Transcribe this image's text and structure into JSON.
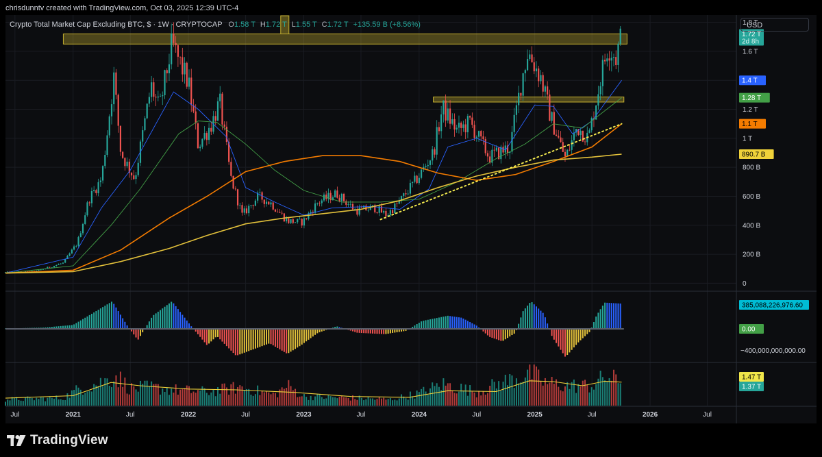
{
  "attribution": "chrisdunntv created with TradingView.com, Oct 03, 2025 12:39 UTC-4",
  "legend": {
    "symbol": "Crypto Total Market Cap Excluding BTC, $ · 1W · CRYPTOCAP",
    "o_label": "O",
    "o_value": "1.58 T",
    "h_label": "H",
    "h_value": "1.72 T",
    "l_label": "L",
    "l_value": "1.55 T",
    "c_label": "C",
    "c_value": "1.72 T",
    "change": "+135.59 B (+8.56%)"
  },
  "currency": "USD",
  "brand": {
    "name": "TradingView",
    "icon": "tradingview-logo-icon"
  },
  "colors": {
    "up": "#26a69a",
    "down": "#ef5350",
    "ma_blue": "#2962ff",
    "ma_green": "#43a047",
    "ma_orange": "#f57c00",
    "ma_yellow": "#e3c13b",
    "zone": "#c8b330",
    "hist_blue": "#2962ff",
    "hist_teal": "#26a69a",
    "hist_red": "#ef5350",
    "hist_yellow": "#e3c13b"
  },
  "chart_data": {
    "type": "candlestick",
    "interval": "1W",
    "x_range": [
      "2020-06-01",
      "2026-10-01"
    ],
    "y_range": [
      -50000000000,
      1850000000000
    ],
    "y_ticks": [
      "0",
      "200 B",
      "400 B",
      "600 B",
      "800 B",
      "1 T",
      "1.2 T",
      "1.4 T",
      "1.6 T",
      "1.8 T"
    ],
    "y_tick_values": [
      0,
      200,
      400,
      600,
      800,
      1000,
      1200,
      1400,
      1600,
      1800
    ],
    "x_ticks": [
      {
        "label": "Jul",
        "date": "2020-07-01",
        "year": false
      },
      {
        "label": "2021",
        "date": "2021-01-01",
        "year": true
      },
      {
        "label": "Jul",
        "date": "2021-07-01",
        "year": false
      },
      {
        "label": "2022",
        "date": "2022-01-01",
        "year": true
      },
      {
        "label": "Jul",
        "date": "2022-07-01",
        "year": false
      },
      {
        "label": "2023",
        "date": "2023-01-01",
        "year": true
      },
      {
        "label": "Jul",
        "date": "2023-07-01",
        "year": false
      },
      {
        "label": "2024",
        "date": "2024-01-01",
        "year": true
      },
      {
        "label": "Jul",
        "date": "2024-07-01",
        "year": false
      },
      {
        "label": "2025",
        "date": "2025-01-01",
        "year": true
      },
      {
        "label": "Jul",
        "date": "2025-07-01",
        "year": false
      },
      {
        "label": "2026",
        "date": "2026-01-01",
        "year": true
      },
      {
        "label": "Jul",
        "date": "2026-07-01",
        "year": false
      }
    ],
    "price_path": [
      [
        "2020-06-01",
        75
      ],
      [
        "2020-09-01",
        80
      ],
      [
        "2020-12-01",
        140
      ],
      [
        "2021-01-15",
        280
      ],
      [
        "2021-02-20",
        580
      ],
      [
        "2021-04-01",
        720
      ],
      [
        "2021-05-10",
        1420
      ],
      [
        "2021-06-01",
        900
      ],
      [
        "2021-07-15",
        720
      ],
      [
        "2021-09-05",
        1360
      ],
      [
        "2021-10-01",
        1200
      ],
      [
        "2021-11-10",
        1650
      ],
      [
        "2022-01-01",
        1380
      ],
      [
        "2022-02-01",
        950
      ],
      [
        "2022-03-15",
        1100
      ],
      [
        "2022-04-10",
        1250
      ],
      [
        "2022-05-15",
        730
      ],
      [
        "2022-06-20",
        470
      ],
      [
        "2022-08-10",
        600
      ],
      [
        "2022-09-20",
        550
      ],
      [
        "2022-11-10",
        430
      ],
      [
        "2022-12-28",
        420
      ],
      [
        "2023-02-15",
        560
      ],
      [
        "2023-04-15",
        620
      ],
      [
        "2023-06-15",
        500
      ],
      [
        "2023-08-15",
        520
      ],
      [
        "2023-09-20",
        470
      ],
      [
        "2023-10-30",
        560
      ],
      [
        "2024-01-01",
        740
      ],
      [
        "2024-02-15",
        900
      ],
      [
        "2024-03-15",
        1210
      ],
      [
        "2024-05-01",
        1050
      ],
      [
        "2024-06-10",
        1110
      ],
      [
        "2024-08-10",
        870
      ],
      [
        "2024-10-15",
        940
      ],
      [
        "2024-11-20",
        1400
      ],
      [
        "2024-12-10",
        1600
      ],
      [
        "2025-01-20",
        1420
      ],
      [
        "2025-02-20",
        1150
      ],
      [
        "2025-04-08",
        860
      ],
      [
        "2025-05-15",
        1080
      ],
      [
        "2025-06-20",
        1000
      ],
      [
        "2025-07-25",
        1380
      ],
      [
        "2025-08-20",
        1640
      ],
      [
        "2025-09-15",
        1560
      ],
      [
        "2025-10-03",
        1720
      ]
    ],
    "moving_averages": [
      {
        "color": "ma_blue",
        "last_value": "1.4 T",
        "path": [
          [
            "2020-06-01",
            70
          ],
          [
            "2021-01-01",
            180
          ],
          [
            "2021-04-01",
            520
          ],
          [
            "2021-07-01",
            780
          ],
          [
            "2021-11-15",
            1320
          ],
          [
            "2022-02-01",
            1200
          ],
          [
            "2022-05-01",
            1010
          ],
          [
            "2022-07-01",
            660
          ],
          [
            "2022-10-01",
            560
          ],
          [
            "2023-01-01",
            470
          ],
          [
            "2023-04-01",
            520
          ],
          [
            "2023-08-01",
            530
          ],
          [
            "2023-11-01",
            510
          ],
          [
            "2024-02-01",
            650
          ],
          [
            "2024-04-01",
            940
          ],
          [
            "2024-07-01",
            1000
          ],
          [
            "2024-10-01",
            920
          ],
          [
            "2025-01-01",
            1230
          ],
          [
            "2025-03-01",
            1220
          ],
          [
            "2025-05-01",
            1030
          ],
          [
            "2025-07-01",
            1120
          ],
          [
            "2025-10-03",
            1400
          ]
        ]
      },
      {
        "color": "ma_green",
        "last_value": "1.28 T",
        "path": [
          [
            "2020-06-01",
            70
          ],
          [
            "2021-01-01",
            120
          ],
          [
            "2021-05-01",
            400
          ],
          [
            "2021-08-01",
            650
          ],
          [
            "2021-12-01",
            1030
          ],
          [
            "2022-02-01",
            1120
          ],
          [
            "2022-04-01",
            1110
          ],
          [
            "2022-07-01",
            960
          ],
          [
            "2022-10-01",
            780
          ],
          [
            "2023-01-01",
            640
          ],
          [
            "2023-05-01",
            560
          ],
          [
            "2023-09-01",
            560
          ],
          [
            "2024-01-01",
            580
          ],
          [
            "2024-05-01",
            700
          ],
          [
            "2024-09-01",
            860
          ],
          [
            "2024-12-01",
            960
          ],
          [
            "2025-03-01",
            1100
          ],
          [
            "2025-06-01",
            1070
          ],
          [
            "2025-10-03",
            1280
          ]
        ]
      },
      {
        "color": "ma_orange",
        "last_value": "1.1 T",
        "path": [
          [
            "2020-06-01",
            70
          ],
          [
            "2021-01-01",
            90
          ],
          [
            "2021-06-01",
            230
          ],
          [
            "2021-11-01",
            450
          ],
          [
            "2022-03-01",
            600
          ],
          [
            "2022-07-01",
            770
          ],
          [
            "2022-11-01",
            840
          ],
          [
            "2023-03-01",
            880
          ],
          [
            "2023-07-01",
            880
          ],
          [
            "2023-11-01",
            840
          ],
          [
            "2024-03-01",
            760
          ],
          [
            "2024-07-01",
            710
          ],
          [
            "2024-11-01",
            750
          ],
          [
            "2025-03-01",
            840
          ],
          [
            "2025-07-01",
            940
          ],
          [
            "2025-10-03",
            1100
          ]
        ]
      },
      {
        "color": "ma_yellow",
        "last_value": "890.7 B",
        "path": [
          [
            "2020-06-01",
            70
          ],
          [
            "2021-01-01",
            80
          ],
          [
            "2021-06-01",
            150
          ],
          [
            "2021-11-01",
            240
          ],
          [
            "2022-03-01",
            330
          ],
          [
            "2022-07-01",
            410
          ],
          [
            "2022-11-01",
            450
          ],
          [
            "2023-03-01",
            480
          ],
          [
            "2023-07-01",
            510
          ],
          [
            "2023-11-01",
            570
          ],
          [
            "2024-03-01",
            660
          ],
          [
            "2024-07-01",
            740
          ],
          [
            "2024-11-01",
            800
          ],
          [
            "2025-03-01",
            850
          ],
          [
            "2025-07-01",
            870
          ],
          [
            "2025-10-03",
            890.7
          ]
        ]
      }
    ],
    "last_price": "1.72 T",
    "last_price_countdown": "2d 8h",
    "price_axis_labels": [
      "1.72 T",
      "2d 8h",
      "1.4 T",
      "1.28 T",
      "1.1 T",
      "890.7 B"
    ],
    "zones": [
      {
        "from": "2020-12-01",
        "to": "2025-10-20",
        "low": 1650,
        "high": 1720
      },
      {
        "from": "2024-02-15",
        "to": "2025-10-10",
        "low": 1250,
        "high": 1285
      }
    ],
    "vertical_marker": {
      "from": "2022-10-20",
      "to": "2022-11-15",
      "low": 1720,
      "high": 1850
    },
    "trendline_dotted": [
      [
        "2023-09-01",
        440
      ],
      [
        "2025-10-03",
        1100
      ]
    ],
    "oscillator": {
      "value_label": "385,088,226,976.60",
      "zero_label": "0.00",
      "tick_label": "−400,000,000,000.00",
      "range": [
        -480,
        480
      ],
      "path": [
        [
          "2020-06-01",
          5
        ],
        [
          "2020-10-01",
          20
        ],
        [
          "2021-01-01",
          60
        ],
        [
          "2021-03-01",
          230
        ],
        [
          "2021-05-05",
          420
        ],
        [
          "2021-06-20",
          60
        ],
        [
          "2021-07-25",
          -170
        ],
        [
          "2021-09-10",
          200
        ],
        [
          "2021-11-10",
          420
        ],
        [
          "2022-01-10",
          40
        ],
        [
          "2022-03-01",
          -250
        ],
        [
          "2022-04-01",
          -110
        ],
        [
          "2022-06-01",
          -410
        ],
        [
          "2022-07-15",
          -330
        ],
        [
          "2022-09-15",
          -220
        ],
        [
          "2022-11-10",
          -380
        ],
        [
          "2022-12-20",
          -260
        ],
        [
          "2023-02-15",
          -60
        ],
        [
          "2023-04-15",
          40
        ],
        [
          "2023-06-20",
          -60
        ],
        [
          "2023-09-15",
          -80
        ],
        [
          "2023-11-20",
          -30
        ],
        [
          "2024-01-10",
          120
        ],
        [
          "2024-04-01",
          200
        ],
        [
          "2024-05-15",
          170
        ],
        [
          "2024-07-01",
          50
        ],
        [
          "2024-08-10",
          -120
        ],
        [
          "2024-09-20",
          -190
        ],
        [
          "2024-11-01",
          -60
        ],
        [
          "2024-11-25",
          270
        ],
        [
          "2024-12-20",
          420
        ],
        [
          "2025-01-30",
          230
        ],
        [
          "2025-02-25",
          -120
        ],
        [
          "2025-04-08",
          -430
        ],
        [
          "2025-05-20",
          -200
        ],
        [
          "2025-06-25",
          -40
        ],
        [
          "2025-07-15",
          200
        ],
        [
          "2025-08-10",
          400
        ],
        [
          "2025-10-03",
          385
        ]
      ]
    },
    "volume": {
      "labels": [
        "1.47 T",
        "1.37 T"
      ],
      "range": [
        0,
        2.4
      ],
      "path": [
        [
          "2020-06-01",
          0.4
        ],
        [
          "2020-12-01",
          0.5
        ],
        [
          "2021-01-20",
          1.1
        ],
        [
          "2021-04-15",
          1.6
        ],
        [
          "2021-05-15",
          2.0
        ],
        [
          "2021-07-01",
          1.1
        ],
        [
          "2021-09-01",
          1.2
        ],
        [
          "2021-12-01",
          1.0
        ],
        [
          "2022-03-01",
          0.9
        ],
        [
          "2022-06-15",
          1.2
        ],
        [
          "2022-10-01",
          0.7
        ],
        [
          "2022-11-10",
          1.3
        ],
        [
          "2023-01-01",
          0.6
        ],
        [
          "2023-06-01",
          0.5
        ],
        [
          "2023-10-01",
          0.4
        ],
        [
          "2024-01-01",
          0.8
        ],
        [
          "2024-03-15",
          1.4
        ],
        [
          "2024-07-01",
          0.9
        ],
        [
          "2024-11-15",
          1.9
        ],
        [
          "2024-12-15",
          2.2
        ],
        [
          "2025-02-01",
          1.5
        ],
        [
          "2025-04-15",
          1.3
        ],
        [
          "2025-07-01",
          1.3
        ],
        [
          "2025-08-15",
          1.9
        ],
        [
          "2025-10-03",
          1.5
        ]
      ],
      "ma_path": [
        [
          "2020-06-01",
          0.45
        ],
        [
          "2021-01-01",
          0.6
        ],
        [
          "2021-05-01",
          1.4
        ],
        [
          "2021-08-01",
          1.2
        ],
        [
          "2022-01-01",
          1.0
        ],
        [
          "2022-06-01",
          0.95
        ],
        [
          "2022-12-01",
          0.8
        ],
        [
          "2023-06-01",
          0.55
        ],
        [
          "2023-12-01",
          0.5
        ],
        [
          "2024-04-01",
          0.9
        ],
        [
          "2024-09-01",
          0.85
        ],
        [
          "2024-12-15",
          1.5
        ],
        [
          "2025-03-01",
          1.45
        ],
        [
          "2025-06-01",
          1.2
        ],
        [
          "2025-08-10",
          1.47
        ],
        [
          "2025-10-03",
          1.42
        ]
      ]
    }
  }
}
